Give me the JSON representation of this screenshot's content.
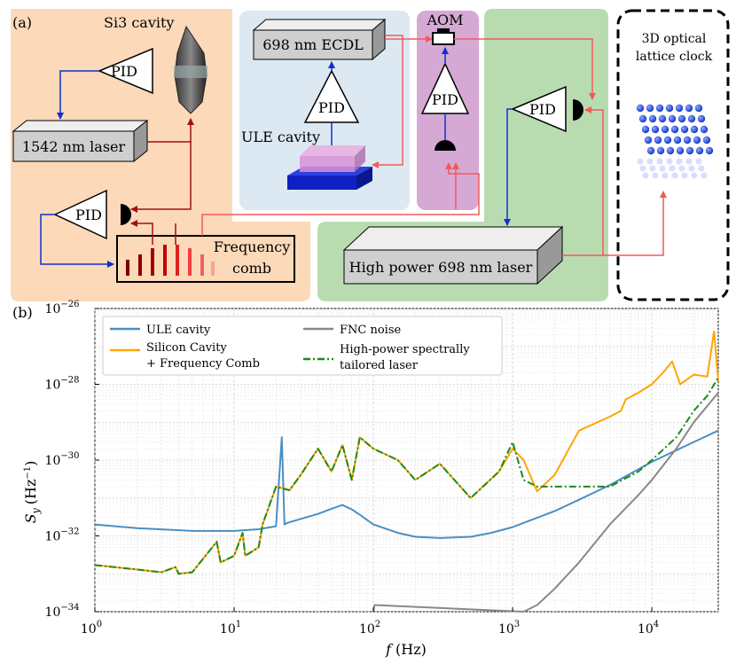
{
  "panel_a": {
    "label": "(a)",
    "si3_cavity": "Si3 cavity",
    "pid": "PID",
    "laser_1542": "1542 nm laser",
    "ecdl": "698 nm ECDL",
    "ule_cavity": "ULE cavity",
    "aom": "AOM",
    "comb_line1": "Frequency",
    "comb_line2": "comb",
    "hp_laser": "High power 698 nm laser",
    "clock_line1": "3D optical",
    "clock_line2": "lattice  clock",
    "colors": {
      "orange_bg": "#fcd9b8",
      "blue_bg": "#dce9f2",
      "purple_bg": "#d6a8d4",
      "green_bg": "#b8dcb0",
      "red_beam": "#f25a5a",
      "dark_red_beam": "#a01010",
      "blue_line": "#1030d0"
    }
  },
  "panel_b": {
    "label": "(b)",
    "ylabel_main": "S",
    "ylabel_sub": "y",
    "ylabel_unit": "(Hz",
    "ylabel_exp": "−1",
    "ylabel_close": ")",
    "xlabel_main": "f",
    "xlabel_unit": "(Hz)",
    "xticks": [
      {
        "base": "10",
        "exp": "0"
      },
      {
        "base": "10",
        "exp": "1"
      },
      {
        "base": "10",
        "exp": "2"
      },
      {
        "base": "10",
        "exp": "3"
      },
      {
        "base": "10",
        "exp": "4"
      }
    ],
    "yticks": [
      {
        "base": "10",
        "exp": "−34"
      },
      {
        "base": "10",
        "exp": "−32"
      },
      {
        "base": "10",
        "exp": "−30"
      },
      {
        "base": "10",
        "exp": "−28"
      },
      {
        "base": "10",
        "exp": "−26"
      }
    ],
    "legend": {
      "ule": "ULE cavity",
      "silicon_1": "Silicon Cavity",
      "silicon_2": "+ Frequency Comb",
      "fnc": "FNC noise",
      "hp_1": "High-power spectrally",
      "hp_2": "tailored laser"
    }
  },
  "chart_data": {
    "type": "line",
    "x_scale": "log",
    "y_scale": "log",
    "xlim": [
      1,
      30000
    ],
    "ylim": [
      1e-34,
      1e-26
    ],
    "grid": true,
    "legend_position": "top",
    "series": [
      {
        "name": "ULE cavity",
        "color": "#4a8fc4",
        "x": [
          1,
          2,
          5,
          10,
          15,
          20,
          22,
          23,
          24,
          30,
          40,
          50,
          60,
          70,
          80,
          100,
          150,
          200,
          300,
          500,
          700,
          1000,
          2000,
          3000,
          5000,
          10000,
          20000,
          30000
        ],
        "y": [
          2e-32,
          1.6e-32,
          1.35e-32,
          1.35e-32,
          1.5e-32,
          1.8e-32,
          4e-30,
          2e-32,
          2.2e-32,
          2.8e-32,
          3.8e-32,
          5.2e-32,
          6.5e-32,
          5e-32,
          3.6e-32,
          2e-32,
          1.2e-32,
          9.5e-33,
          8.8e-33,
          9.5e-33,
          1.2e-32,
          1.7e-32,
          4.5e-32,
          9e-32,
          2.2e-31,
          9e-31,
          3e-30,
          6e-30
        ]
      },
      {
        "name": "Silicon Cavity + Frequency Comb",
        "color": "#ffa500",
        "x": [
          1,
          2,
          3,
          3.8,
          4,
          5,
          7.5,
          8,
          10,
          11.5,
          12,
          15,
          16,
          20,
          25,
          30,
          40,
          50,
          60,
          70,
          80,
          100,
          150,
          200,
          300,
          500,
          800,
          1000,
          1200,
          1300,
          1500,
          2000,
          3000,
          5000,
          6000,
          6500,
          8000,
          10000,
          12000,
          14000,
          16000,
          20000,
          25000,
          28000,
          30000
        ],
        "y": [
          1.7e-33,
          1.3e-33,
          1.1e-33,
          1.5e-33,
          1e-33,
          1.1e-33,
          7e-33,
          2e-33,
          3e-33,
          1.2e-32,
          3e-33,
          5e-33,
          2e-32,
          2e-31,
          1.6e-31,
          4e-31,
          2e-30,
          5e-31,
          2.5e-30,
          3e-31,
          4e-30,
          2e-30,
          1e-30,
          3e-31,
          8e-31,
          1e-31,
          5e-31,
          2e-30,
          1e-30,
          5e-31,
          1.5e-31,
          4e-31,
          6e-30,
          1.4e-29,
          2e-29,
          4e-29,
          6e-29,
          1e-28,
          2e-28,
          4e-28,
          1e-28,
          1.8e-28,
          1.6e-28,
          2.5e-27,
          1.2e-28
        ]
      },
      {
        "name": "FNC noise",
        "color": "#888888",
        "x": [
          100,
          102,
          1200,
          1500,
          2000,
          3000,
          5000,
          8000,
          10000,
          15000,
          20000,
          30000
        ],
        "y": [
          1e-34,
          1.5e-34,
          1e-34,
          1.5e-34,
          4e-34,
          2e-33,
          2e-32,
          1.2e-31,
          3e-31,
          2e-30,
          1e-29,
          6e-29
        ]
      },
      {
        "name": "High-power spectrally tailored laser",
        "color": "#1a8a1a",
        "x": [
          1,
          2,
          3,
          3.8,
          4,
          5,
          7.5,
          8,
          10,
          11.5,
          12,
          15,
          16,
          20,
          25,
          30,
          40,
          50,
          60,
          70,
          80,
          100,
          150,
          200,
          300,
          500,
          800,
          1000,
          1200,
          1500,
          2000,
          3000,
          5000,
          8000,
          10000,
          15000,
          20000,
          25000,
          30000
        ],
        "y": [
          1.7e-33,
          1.3e-33,
          1.1e-33,
          1.5e-33,
          1e-33,
          1.1e-33,
          7e-33,
          2e-33,
          3e-33,
          1.2e-32,
          3e-33,
          5e-33,
          2e-32,
          2e-31,
          1.6e-31,
          4e-31,
          2e-30,
          5e-31,
          2.5e-30,
          3e-31,
          4e-30,
          2e-30,
          1e-30,
          3e-31,
          8e-31,
          1e-31,
          5e-31,
          3e-30,
          3e-31,
          2e-31,
          2e-31,
          2e-31,
          2e-31,
          5e-31,
          1e-30,
          4e-30,
          2e-29,
          5e-29,
          1.5e-28
        ]
      }
    ]
  }
}
